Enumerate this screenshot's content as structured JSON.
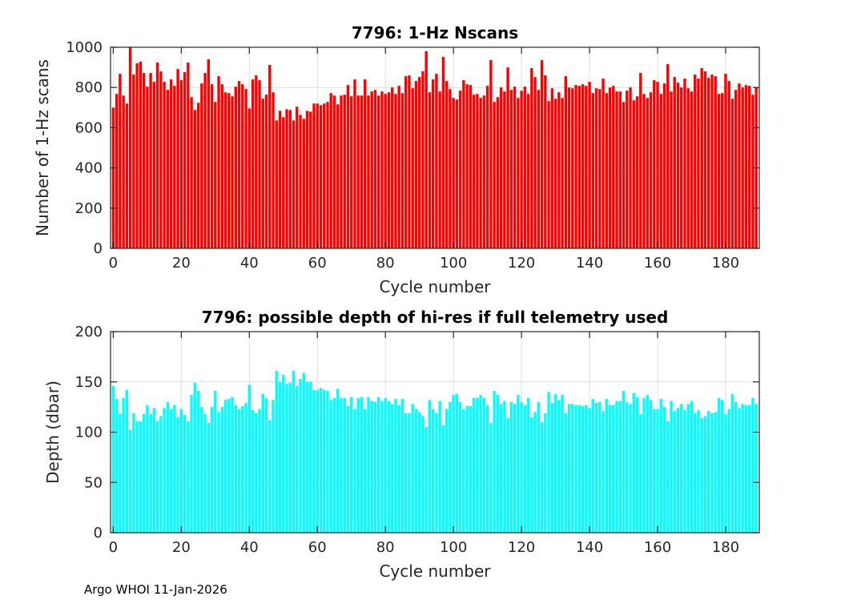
{
  "footer": "Argo WHOI 11-Jan-2026",
  "chart_data": [
    {
      "type": "bar",
      "title": "7796: 1-Hz Nscans",
      "xlabel": "Cycle number",
      "ylabel": "Number of 1-Hz scans",
      "xlim": [
        -0.8,
        189.9
      ],
      "ylim": [
        0,
        1000
      ],
      "xticks": [
        0,
        20,
        40,
        60,
        80,
        100,
        120,
        140,
        160,
        180
      ],
      "yticks": [
        0,
        200,
        400,
        600,
        800,
        1000
      ],
      "grid": true,
      "color": "#ff0000",
      "x_start": 0,
      "values": [
        700,
        768,
        868,
        760,
        720,
        1007,
        864,
        920,
        928,
        872,
        804,
        872,
        828,
        924,
        880,
        828,
        788,
        840,
        808,
        892,
        836,
        876,
        924,
        752,
        688,
        724,
        820,
        872,
        940,
        816,
        728,
        856,
        816,
        776,
        772,
        756,
        804,
        832,
        816,
        792,
        696,
        840,
        860,
        836,
        744,
        764,
        912,
        776,
        636,
        684,
        652,
        692,
        688,
        636,
        704,
        664,
        644,
        684,
        680,
        720,
        720,
        712,
        720,
        728,
        772,
        760,
        716,
        760,
        764,
        812,
        756,
        840,
        760,
        760,
        840,
        760,
        780,
        788,
        760,
        780,
        768,
        776,
        800,
        768,
        808,
        772,
        856,
        860,
        796,
        832,
        852,
        880,
        980,
        776,
        840,
        868,
        780,
        952,
        832,
        792,
        748,
        740,
        784,
        836,
        816,
        812,
        764,
        768,
        748,
        760,
        808,
        936,
        728,
        752,
        800,
        780,
        900,
        788,
        804,
        748,
        784,
        804,
        768,
        896,
        852,
        788,
        936,
        860,
        732,
        796,
        744,
        776,
        748,
        856,
        800,
        796,
        812,
        808,
        816,
        808,
        828,
        772,
        796,
        792,
        844,
        772,
        800,
        808,
        780,
        780,
        728,
        784,
        800,
        736,
        756,
        872,
        768,
        748,
        776,
        836,
        828,
        768,
        820,
        916,
        780,
        852,
        824,
        800,
        844,
        796,
        780,
        864,
        844,
        896,
        880,
        848,
        864,
        856,
        768,
        772,
        868,
        832,
        744,
        788,
        820,
        800,
        812,
        808,
        764,
        800
      ]
    },
    {
      "type": "bar",
      "title": "7796: possible depth of hi-res if full telemetry used",
      "xlabel": "Cycle number",
      "ylabel": "Depth (dbar)",
      "xlim": [
        -0.8,
        189.9
      ],
      "ylim": [
        0,
        200
      ],
      "xticks": [
        0,
        20,
        40,
        60,
        80,
        100,
        120,
        140,
        160,
        180
      ],
      "yticks": [
        0,
        50,
        100,
        150,
        200
      ],
      "grid": true,
      "color": "#00ffff",
      "x_start": 0,
      "values": [
        146,
        133,
        118,
        134,
        142,
        102,
        119,
        111,
        111,
        118,
        127,
        118,
        124,
        111,
        116,
        124,
        130,
        123,
        127,
        115,
        123,
        117,
        111,
        137,
        149,
        141,
        125,
        118,
        109,
        125,
        141,
        120,
        125,
        132,
        133,
        135,
        127,
        123,
        126,
        129,
        147,
        122,
        119,
        123,
        138,
        134,
        112,
        132,
        161,
        150,
        157,
        148,
        149,
        161,
        146,
        153,
        159,
        150,
        150,
        142,
        142,
        144,
        142,
        141,
        132,
        134,
        143,
        134,
        134,
        126,
        135,
        123,
        134,
        135,
        123,
        135,
        131,
        130,
        135,
        131,
        134,
        131,
        128,
        133,
        127,
        133,
        119,
        119,
        128,
        123,
        120,
        116,
        105,
        132,
        123,
        119,
        131,
        107,
        123,
        130,
        137,
        138,
        130,
        123,
        126,
        126,
        134,
        134,
        137,
        134,
        127,
        109,
        141,
        137,
        128,
        131,
        114,
        130,
        128,
        137,
        130,
        127,
        134,
        115,
        120,
        130,
        110,
        119,
        140,
        129,
        138,
        132,
        137,
        119,
        128,
        128,
        127,
        127,
        126,
        127,
        124,
        133,
        129,
        130,
        121,
        133,
        127,
        127,
        131,
        131,
        141,
        130,
        128,
        139,
        135,
        118,
        134,
        137,
        132,
        123,
        123,
        133,
        125,
        111,
        131,
        121,
        124,
        128,
        122,
        128,
        131,
        119,
        122,
        114,
        116,
        121,
        119,
        120,
        134,
        132,
        118,
        123,
        138,
        130,
        124,
        128,
        127,
        127,
        134,
        128
      ]
    }
  ]
}
